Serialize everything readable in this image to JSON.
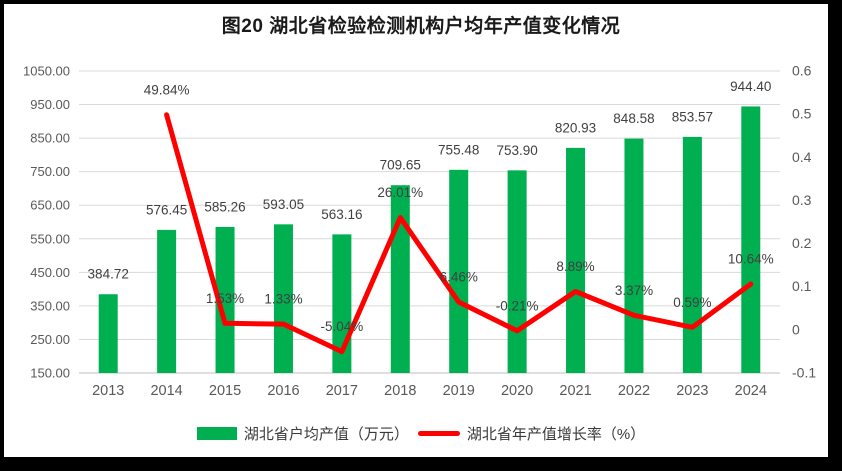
{
  "title": "图20 湖北省检验检测机构户均年产值变化情况",
  "chart_data": {
    "type": "bar",
    "subtype": "bar-line-combo",
    "title": "图20 湖北省检验检测机构户均年产值变化情况",
    "categories": [
      "2013",
      "2014",
      "2015",
      "2016",
      "2017",
      "2018",
      "2019",
      "2020",
      "2021",
      "2022",
      "2023",
      "2024"
    ],
    "series": [
      {
        "name": "湖北省户均产值（万元）",
        "type": "bar",
        "axis": "left",
        "color": "#00B050",
        "values": [
          384.72,
          576.45,
          585.26,
          593.05,
          563.16,
          709.65,
          755.48,
          753.9,
          820.93,
          848.58,
          853.57,
          944.4
        ],
        "labels": [
          "384.72",
          "576.45",
          "585.26",
          "593.05",
          "563.16",
          "709.65",
          "755.48",
          "753.90",
          "820.93",
          "848.58",
          "853.57",
          "944.40"
        ]
      },
      {
        "name": "湖北省年产值增长率（%）",
        "type": "line",
        "axis": "right",
        "color": "#FF0000",
        "values": [
          null,
          0.4984,
          0.0153,
          0.0133,
          -0.0504,
          0.2601,
          0.0646,
          -0.0021,
          0.0889,
          0.0337,
          0.0059,
          0.1064
        ],
        "labels": [
          null,
          "49.84%",
          "1.53%",
          "1.33%",
          "-5.04%",
          "26.01%",
          "6.46%",
          "-0.21%",
          "8.89%",
          "3.37%",
          "0.59%",
          "10.64%"
        ]
      }
    ],
    "left_axis": {
      "min": 150,
      "max": 1050,
      "step": 100,
      "ticks": [
        "1050.00",
        "950.00",
        "850.00",
        "750.00",
        "650.00",
        "550.00",
        "450.00",
        "350.00",
        "250.00",
        "150.00"
      ]
    },
    "right_axis": {
      "min": -0.1,
      "max": 0.6,
      "step": 0.1,
      "ticks": [
        "0.6",
        "0.5",
        "0.4",
        "0.3",
        "0.2",
        "0.1",
        "0",
        "-0.1"
      ]
    },
    "grid": true,
    "legend_position": "bottom"
  },
  "colors": {
    "bar": "#00B050",
    "line": "#FF0000",
    "grid": "#D9D9D9",
    "axis_line": "#BFBFBF",
    "tick_label": "#595959",
    "data_label": "#404040",
    "title": "#1a1a1a",
    "background": "#FFFFFF",
    "frame": "#000000"
  }
}
